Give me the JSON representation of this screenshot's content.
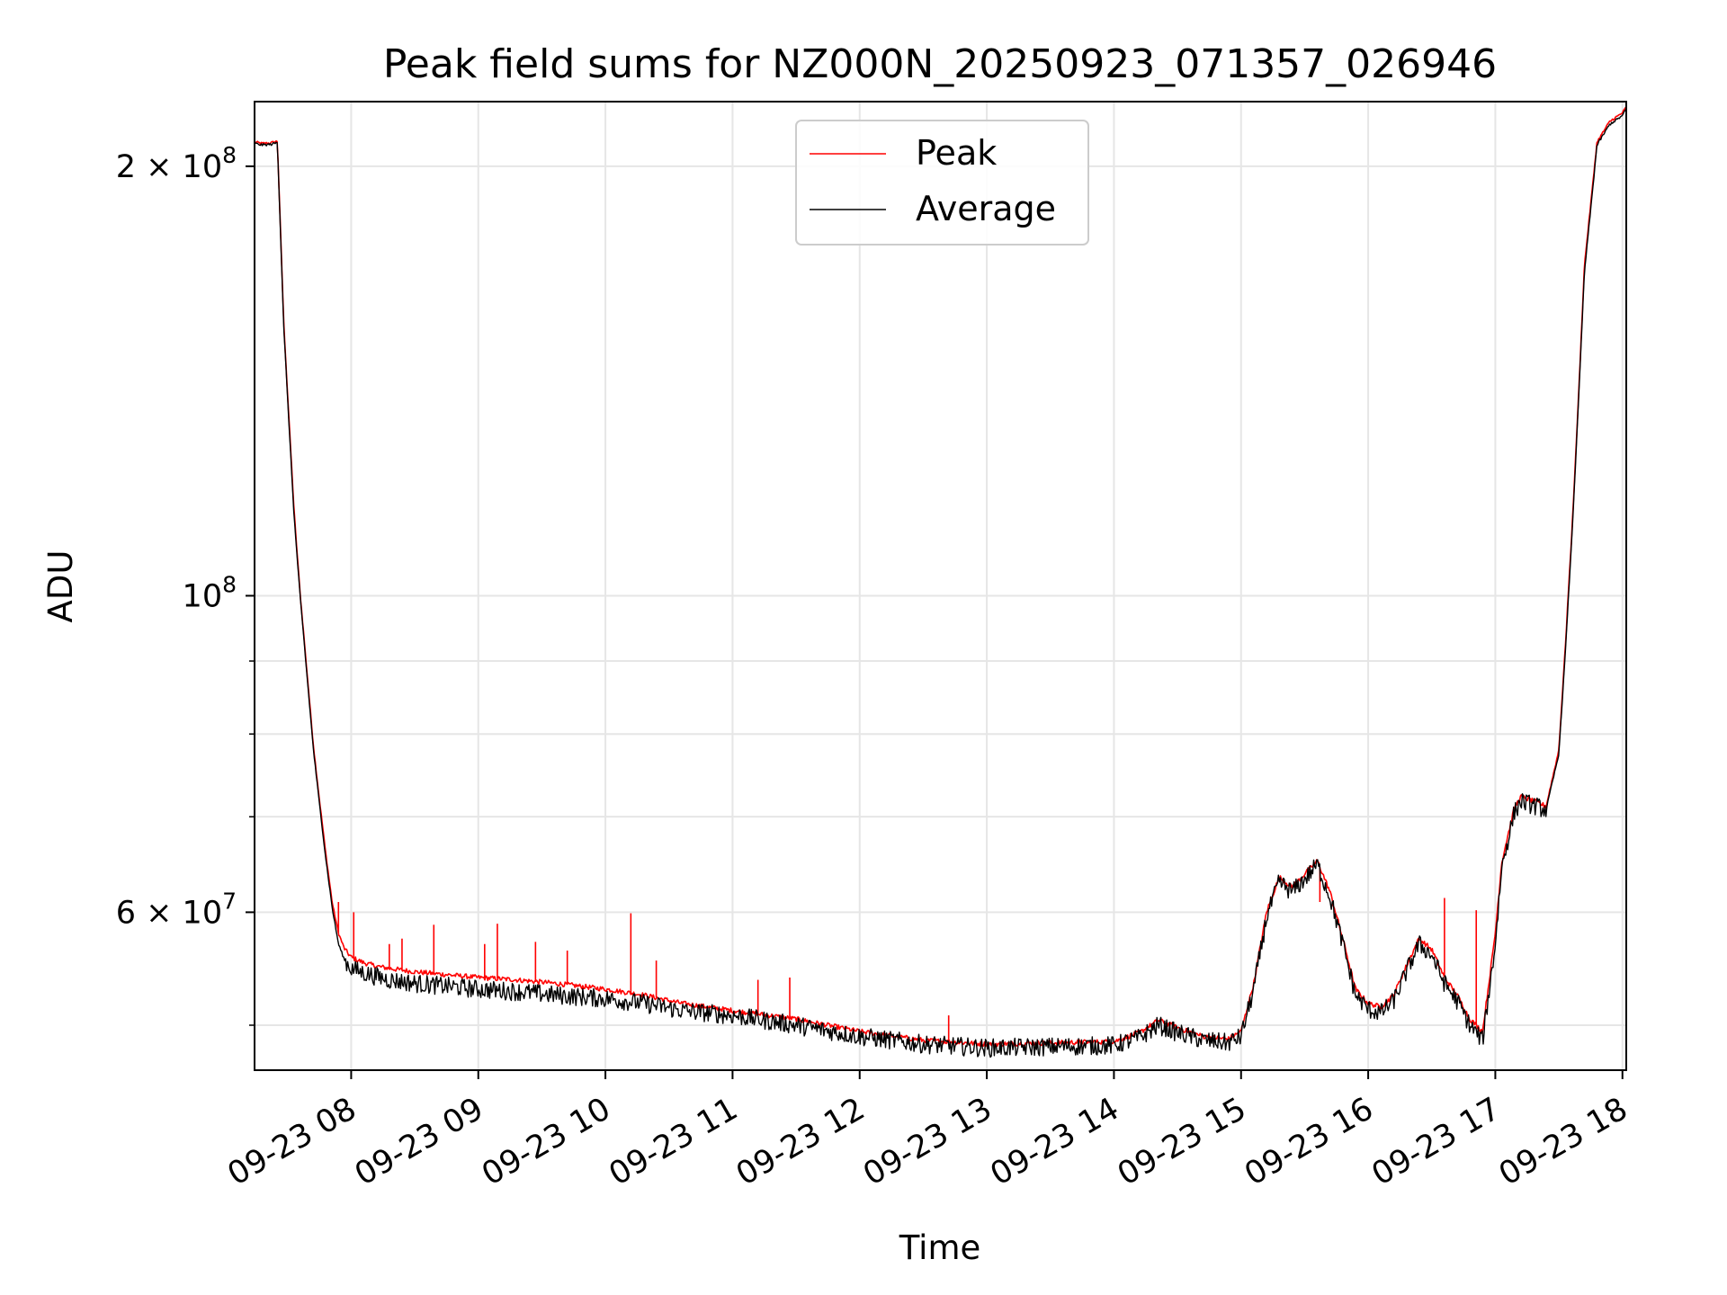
{
  "chart_data": {
    "type": "line",
    "title": "Peak field sums for NZ000N_20250923_071357_026946",
    "xlabel": "Time",
    "ylabel": "ADU",
    "yscale": "log",
    "xlim": [
      7.24,
      18.03
    ],
    "ylim": [
      46500000,
      222000000
    ],
    "grid": true,
    "legend_position": "top-center",
    "x_ticks": [
      {
        "value": 8,
        "label": "09-23 08"
      },
      {
        "value": 9,
        "label": "09-23 09"
      },
      {
        "value": 10,
        "label": "09-23 10"
      },
      {
        "value": 11,
        "label": "09-23 11"
      },
      {
        "value": 12,
        "label": "09-23 12"
      },
      {
        "value": 13,
        "label": "09-23 13"
      },
      {
        "value": 14,
        "label": "09-23 14"
      },
      {
        "value": 15,
        "label": "09-23 15"
      },
      {
        "value": 16,
        "label": "09-23 16"
      },
      {
        "value": 17,
        "label": "09-23 17"
      },
      {
        "value": 18,
        "label": "09-23 18"
      }
    ],
    "y_major_ticks": [
      {
        "value": 60000000,
        "label_mantissa": "6 × 10",
        "label_exp": "7"
      },
      {
        "value": 100000000,
        "label_mantissa": "10",
        "label_exp": "8"
      },
      {
        "value": 200000000,
        "label_mantissa": "2 × 10",
        "label_exp": "8"
      }
    ],
    "y_minor_ticks": [
      50000000,
      70000000,
      80000000,
      90000000
    ],
    "series": [
      {
        "name": "Peak",
        "color": "#ff0000",
        "x": [
          7.24,
          7.3,
          7.37,
          7.42,
          7.47,
          7.55,
          7.6,
          7.65,
          7.7,
          7.75,
          7.8,
          7.85,
          7.9,
          7.95,
          8.0,
          8.1,
          8.2,
          8.3,
          8.5,
          8.7,
          9.0,
          9.3,
          9.6,
          10.0,
          10.3,
          10.6,
          11.0,
          11.5,
          12.0,
          12.5,
          13.0,
          13.5,
          14.0,
          14.2,
          14.35,
          14.5,
          14.7,
          14.9,
          15.0,
          15.1,
          15.2,
          15.3,
          15.4,
          15.5,
          15.6,
          15.7,
          15.8,
          15.9,
          16.0,
          16.1,
          16.2,
          16.3,
          16.4,
          16.5,
          16.6,
          16.7,
          16.8,
          16.9,
          17.0,
          17.05,
          17.1,
          17.15,
          17.2,
          17.3,
          17.4,
          17.5,
          17.55,
          17.6,
          17.65,
          17.7,
          17.8,
          17.9,
          18.0,
          18.03
        ],
        "y": [
          208000000,
          207500000,
          207700000,
          208300000,
          155000000,
          115000000,
          100000000,
          89000000,
          79000000,
          72000000,
          66000000,
          61000000,
          58000000,
          56500000,
          55800000,
          55300000,
          55000000,
          54800000,
          54500000,
          54300000,
          54000000,
          53800000,
          53500000,
          53000000,
          52500000,
          51800000,
          51200000,
          50500000,
          49500000,
          48800000,
          48500000,
          48600000,
          48700000,
          49400000,
          50400000,
          49800000,
          49100000,
          48900000,
          49500000,
          53500000,
          60000000,
          63500000,
          62500000,
          63800000,
          65200000,
          62000000,
          57500000,
          53000000,
          51800000,
          51500000,
          52500000,
          55000000,
          57500000,
          56500000,
          54000000,
          52500000,
          50500000,
          49500000,
          58000000,
          65000000,
          68000000,
          71000000,
          72300000,
          71800000,
          71200000,
          78000000,
          92000000,
          110000000,
          135000000,
          170000000,
          208000000,
          215000000,
          218000000,
          220000000
        ],
        "spikes": [
          [
            7.9,
            61000000
          ],
          [
            8.02,
            60000000
          ],
          [
            8.3,
            57000000
          ],
          [
            8.4,
            57500000
          ],
          [
            8.65,
            58800000
          ],
          [
            9.05,
            57000000
          ],
          [
            9.15,
            58900000
          ],
          [
            9.45,
            57200000
          ],
          [
            9.7,
            56400000
          ],
          [
            10.2,
            59900000
          ],
          [
            10.4,
            55500000
          ],
          [
            11.2,
            53800000
          ],
          [
            11.45,
            54000000
          ],
          [
            12.7,
            50800000
          ],
          [
            15.62,
            61000000
          ],
          [
            16.6,
            61400000
          ],
          [
            16.85,
            60200000
          ]
        ]
      },
      {
        "name": "Average",
        "color": "#000000",
        "x": [
          7.24,
          7.3,
          7.37,
          7.42,
          7.47,
          7.55,
          7.6,
          7.65,
          7.7,
          7.75,
          7.8,
          7.85,
          7.9,
          7.95,
          8.0,
          8.1,
          8.2,
          8.3,
          8.5,
          8.7,
          9.0,
          9.3,
          9.6,
          10.0,
          10.3,
          10.6,
          11.0,
          11.5,
          12.0,
          12.5,
          13.0,
          13.5,
          14.0,
          14.2,
          14.35,
          14.5,
          14.7,
          14.9,
          15.0,
          15.1,
          15.2,
          15.3,
          15.4,
          15.5,
          15.6,
          15.7,
          15.8,
          15.9,
          16.0,
          16.1,
          16.2,
          16.3,
          16.4,
          16.5,
          16.6,
          16.7,
          16.8,
          16.9,
          17.0,
          17.05,
          17.1,
          17.15,
          17.2,
          17.3,
          17.4,
          17.5,
          17.55,
          17.6,
          17.65,
          17.7,
          17.8,
          17.9,
          18.0,
          18.03
        ],
        "y": [
          207500000,
          207000000,
          207200000,
          207800000,
          154000000,
          114000000,
          99500000,
          88500000,
          78500000,
          71500000,
          65500000,
          60500000,
          57000000,
          55500000,
          54800000,
          54400000,
          54100000,
          53800000,
          53500000,
          53300000,
          53000000,
          52800000,
          52500000,
          52200000,
          51800000,
          51200000,
          50800000,
          50000000,
          49100000,
          48500000,
          48200000,
          48300000,
          48400000,
          49000000,
          50000000,
          49400000,
          48800000,
          48600000,
          49100000,
          53000000,
          59500000,
          63000000,
          62000000,
          63300000,
          64800000,
          61500000,
          57000000,
          52500000,
          51300000,
          51000000,
          52000000,
          54500000,
          57000000,
          56000000,
          53500000,
          52000000,
          50000000,
          48800000,
          57000000,
          64500000,
          67500000,
          70500000,
          71800000,
          71300000,
          70800000,
          77500000,
          91000000,
          109000000,
          134000000,
          168000000,
          207000000,
          214000000,
          217000000,
          219500000
        ],
        "noise_amp": 0.015
      }
    ]
  }
}
